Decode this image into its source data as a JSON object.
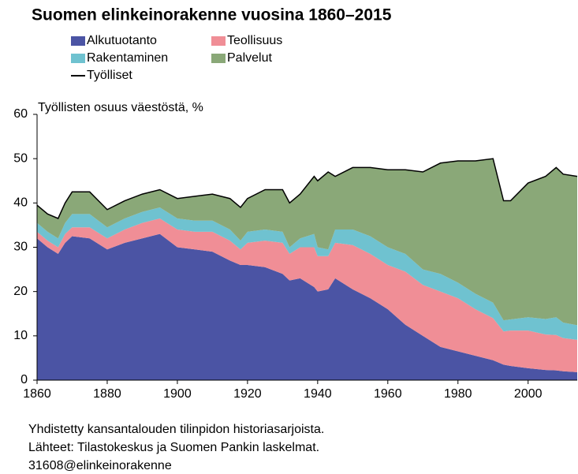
{
  "chart_data": {
    "type": "area",
    "title": "Suomen elinkeinorakenne vuosina 1860–2015",
    "ylabel": "Työllisten osuus väestöstä, %",
    "x": [
      1860,
      1863,
      1866,
      1868,
      1870,
      1875,
      1880,
      1885,
      1890,
      1895,
      1900,
      1905,
      1910,
      1915,
      1918,
      1920,
      1925,
      1930,
      1932,
      1935,
      1939,
      1940,
      1943,
      1945,
      1950,
      1955,
      1960,
      1965,
      1970,
      1975,
      1980,
      1985,
      1990,
      1993,
      1995,
      2000,
      2005,
      2008,
      2010,
      2014
    ],
    "series": [
      {
        "name": "Alkutuotanto",
        "color": "#4b54a4",
        "values": [
          32,
          30,
          28.5,
          31,
          32.5,
          32,
          29.5,
          31,
          32,
          33,
          30,
          29.5,
          29,
          27,
          26,
          26,
          25.5,
          24,
          22.5,
          23,
          21,
          20,
          20.5,
          23,
          20.5,
          18.5,
          16,
          12.5,
          10,
          7.5,
          6.5,
          5.5,
          4.5,
          3.5,
          3.2,
          2.7,
          2.3,
          2.2,
          2,
          1.8
        ]
      },
      {
        "name": "Teollisuus",
        "color": "#f08e96",
        "values": [
          1.5,
          1.5,
          1.5,
          2,
          2,
          2.5,
          2.5,
          3,
          3.5,
          3.5,
          4,
          4,
          4.5,
          4.5,
          3.5,
          5,
          6,
          7,
          6,
          7,
          9,
          8,
          7.5,
          8,
          10,
          10,
          10,
          12,
          11.5,
          12.5,
          12,
          10.5,
          9.5,
          7.5,
          8,
          8.5,
          8,
          8,
          7.5,
          7.3
        ]
      },
      {
        "name": "Rakentaminen",
        "color": "#6fc2d0",
        "values": [
          2,
          2,
          2,
          2.5,
          3,
          3,
          2.5,
          2.5,
          2.5,
          2.5,
          2.5,
          2.5,
          2.5,
          2.5,
          2,
          2.5,
          2.5,
          2.5,
          1.5,
          2,
          3,
          2,
          1.5,
          3,
          3.5,
          4,
          4,
          4,
          3.5,
          4,
          3.5,
          3.5,
          3.5,
          2.5,
          2.5,
          3,
          3.5,
          4,
          3.5,
          3.3
        ]
      },
      {
        "name": "Palvelut",
        "color": "#8aa878",
        "values": [
          4,
          4,
          4.5,
          4.5,
          5,
          5,
          4,
          4,
          4,
          4,
          4.5,
          5.5,
          6,
          7,
          7.5,
          7.5,
          9,
          9.5,
          10,
          10,
          13,
          15,
          17.5,
          12,
          14,
          15.5,
          17.5,
          19,
          22,
          25,
          27.5,
          30,
          32.5,
          27,
          26.8,
          30.3,
          32.2,
          33.8,
          33.5,
          33.6
        ]
      },
      {
        "name": "Työlliset",
        "color": "#000000",
        "line": true,
        "values": [
          39.5,
          37.5,
          36.5,
          40,
          42.5,
          42.5,
          38.5,
          40.5,
          42,
          43,
          41,
          41.5,
          42,
          41,
          39,
          41,
          43,
          43,
          40,
          42,
          46,
          45,
          47,
          46,
          48,
          48,
          47.5,
          47.5,
          47,
          49,
          49.5,
          49.5,
          50,
          40.5,
          40.5,
          44.5,
          46,
          48,
          46.5,
          46
        ]
      }
    ],
    "xlim": [
      1860,
      2014
    ],
    "xticks": [
      1860,
      1880,
      1900,
      1920,
      1940,
      1960,
      1980,
      2000
    ],
    "ylim": [
      0,
      60
    ],
    "yticks": [
      0,
      10,
      20,
      30,
      40,
      50,
      60
    ],
    "notes": [
      "Yhdistetty kansantalouden tilinpidon historiasarjoista.",
      "Lähteet: Tilastokeskus ja Suomen Pankin laskelmat.",
      "31608@elinkeinorakenne"
    ]
  }
}
